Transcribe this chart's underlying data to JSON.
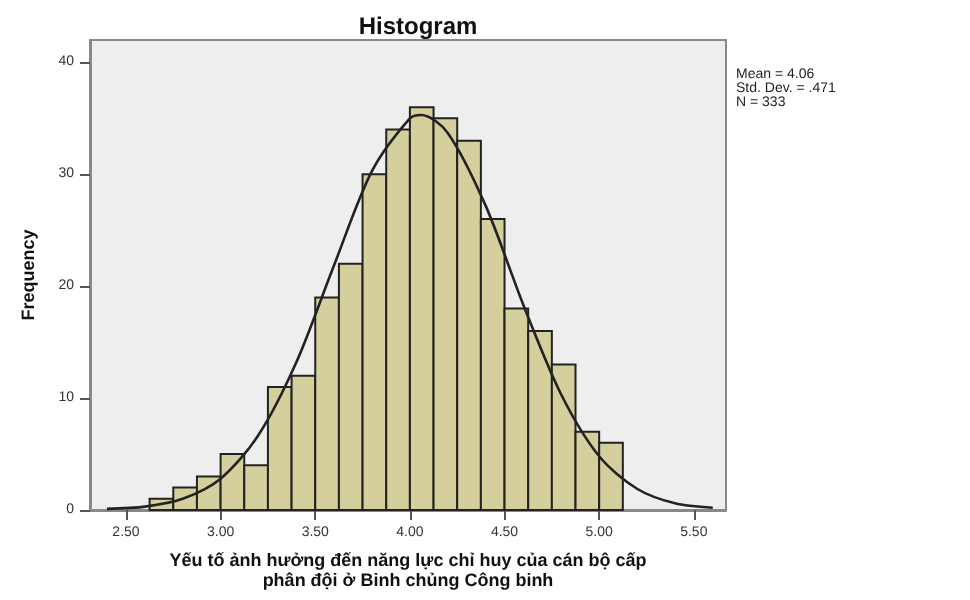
{
  "chart_data": {
    "type": "histogram",
    "title": "Histogram",
    "xlabel": "Yếu tố ảnh hưởng đến năng lực chỉ huy của cán bộ cấp\nphân đội ở Binh chủng Công binh",
    "ylabel": "Frequency",
    "annotations": [
      "Mean = 4.06",
      "Std. Dev. = .471",
      "N = 333"
    ],
    "bins": [
      2.625,
      2.75,
      2.875,
      3.0,
      3.125,
      3.25,
      3.375,
      3.5,
      3.625,
      3.75,
      3.875,
      4.0,
      4.125,
      4.25,
      4.375,
      4.5,
      4.625,
      4.75,
      4.875,
      5.0,
      5.125
    ],
    "series": [
      {
        "color": "#d4cf9c",
        "values": [
          1,
          2,
          3,
          5,
          4,
          11,
          12,
          19,
          22,
          30,
          34,
          36,
          35,
          33,
          26,
          18,
          16,
          13,
          7,
          6
        ]
      },
      {
        "type": "line",
        "color": "#222222",
        "x": [
          2.4,
          2.6,
          2.8,
          3.0,
          3.2,
          3.4,
          3.6,
          3.8,
          4.0,
          4.06,
          4.2,
          4.4,
          4.6,
          4.8,
          5.0,
          5.2,
          5.4,
          5.6
        ],
        "values": [
          0.1,
          0.3,
          1.0,
          2.8,
          6.7,
          13.2,
          21.9,
          30.3,
          35.0,
          35.3,
          33.7,
          27.2,
          18.3,
          10.3,
          4.8,
          1.9,
          0.6,
          0.2
        ]
      }
    ],
    "xlim": [
      2.31,
      5.67
    ],
    "ylim": [
      0,
      42
    ],
    "xticks": [
      {
        "value": 2.5,
        "label": "2.50"
      },
      {
        "value": 3.0,
        "label": "3.00"
      },
      {
        "value": 3.5,
        "label": "3.50"
      },
      {
        "value": 4.0,
        "label": "4.00"
      },
      {
        "value": 4.5,
        "label": "4.50"
      },
      {
        "value": 5.0,
        "label": "5.00"
      },
      {
        "value": 5.5,
        "label": "5.50"
      }
    ],
    "yticks": [
      0,
      10,
      20,
      30,
      40
    ],
    "grid": false
  }
}
